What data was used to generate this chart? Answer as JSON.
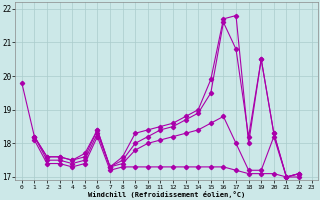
{
  "bg_color": "#cce8e8",
  "grid_color": "#aacccc",
  "line_color": "#aa00aa",
  "xlim": [
    -0.5,
    23.5
  ],
  "ylim": [
    16.9,
    22.2
  ],
  "yticks": [
    17,
    18,
    19,
    20,
    21,
    22
  ],
  "xticks": [
    0,
    1,
    2,
    3,
    4,
    5,
    6,
    7,
    8,
    9,
    10,
    11,
    12,
    13,
    14,
    15,
    16,
    17,
    18,
    19,
    20,
    21,
    22,
    23
  ],
  "xlabel": "Windchill (Refroidissement éolien,°C)",
  "series1_x": [
    0,
    1,
    2,
    3,
    4,
    5,
    6,
    7,
    8,
    9,
    10,
    11,
    12,
    13,
    14,
    15,
    16,
    17,
    18,
    19,
    20,
    21,
    22
  ],
  "series1_y": [
    19.8,
    18.2,
    17.6,
    17.6,
    17.5,
    17.7,
    18.4,
    17.3,
    17.6,
    18.3,
    18.4,
    18.5,
    18.6,
    18.8,
    19.0,
    19.9,
    21.7,
    21.8,
    18.0,
    20.5,
    18.3,
    17.0,
    17.1
  ],
  "series2_x": [
    1,
    2,
    3,
    4,
    5,
    6,
    7,
    8,
    9,
    10,
    11,
    12,
    13,
    14,
    15,
    16,
    17,
    18,
    19,
    20,
    21,
    22
  ],
  "series2_y": [
    18.2,
    17.6,
    17.6,
    17.5,
    17.6,
    18.4,
    17.3,
    17.5,
    18.0,
    18.2,
    18.4,
    18.5,
    18.7,
    18.9,
    19.5,
    21.6,
    20.8,
    18.2,
    20.5,
    18.3,
    17.0,
    17.1
  ],
  "series3_x": [
    1,
    2,
    3,
    4,
    5,
    6,
    7,
    8,
    9,
    10,
    11,
    12,
    13,
    14,
    15,
    16,
    17,
    18,
    19,
    20,
    21,
    22
  ],
  "series3_y": [
    18.2,
    17.5,
    17.5,
    17.4,
    17.5,
    18.3,
    17.3,
    17.4,
    17.8,
    18.0,
    18.1,
    18.2,
    18.3,
    18.4,
    18.6,
    18.8,
    18.0,
    17.2,
    17.2,
    18.2,
    17.0,
    17.1
  ],
  "series4_x": [
    1,
    2,
    3,
    4,
    5,
    6,
    7,
    8,
    9,
    10,
    11,
    12,
    13,
    14,
    15,
    16,
    17,
    18,
    19,
    20,
    21,
    22
  ],
  "series4_y": [
    18.1,
    17.4,
    17.4,
    17.3,
    17.4,
    18.2,
    17.2,
    17.3,
    17.3,
    17.3,
    17.3,
    17.3,
    17.3,
    17.3,
    17.3,
    17.3,
    17.2,
    17.1,
    17.1,
    17.1,
    17.0,
    17.0
  ]
}
